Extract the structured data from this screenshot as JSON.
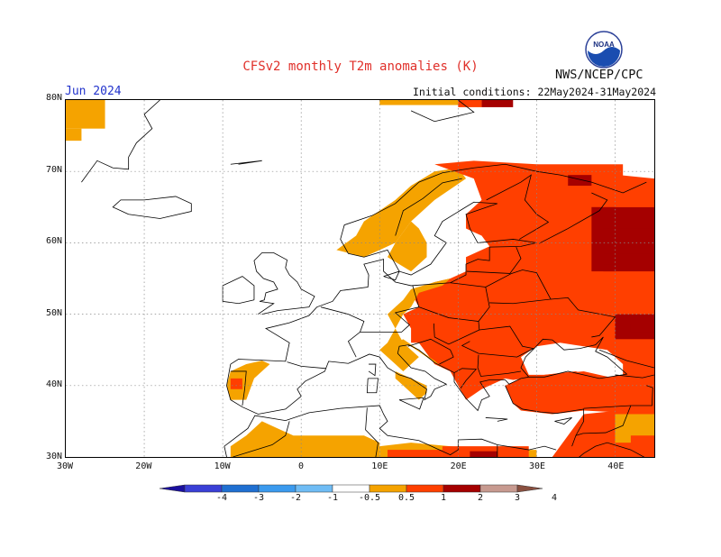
{
  "header": {
    "title": "CFSv2 monthly T2m anomalies (K)",
    "month": "Jun 2024",
    "initial_conditions": "Initial conditions: 22May2024-31May2024",
    "agency": "NWS/NCEP/CPC",
    "logo_text": "NOAA"
  },
  "map": {
    "lat_ticks": [
      "80N",
      "70N",
      "60N",
      "50N",
      "40N",
      "30N"
    ],
    "lon_ticks": [
      "30W",
      "20W",
      "10W",
      "0",
      "10E",
      "20E",
      "30E",
      "40E"
    ],
    "lon_range": [
      -30,
      45
    ],
    "lat_range": [
      30,
      80
    ],
    "gridlines": "dotted"
  },
  "legend": {
    "labels": [
      "-4",
      "-3",
      "-2",
      "-1",
      "-0.5",
      "0.5",
      "1",
      "2",
      "3",
      "4"
    ],
    "colors": [
      "#1a0f9e",
      "#3a3fd6",
      "#1f6fd1",
      "#3b9aee",
      "#6fbcf5",
      "#ffffff",
      "#f5a300",
      "#ff3f00",
      "#a50000",
      "#c79a90",
      "#8a5040"
    ]
  },
  "colors": {
    "c05": "#f5a300",
    "c1": "#ff3f00",
    "c2": "#a50000",
    "neg1": "#3b9aee"
  }
}
